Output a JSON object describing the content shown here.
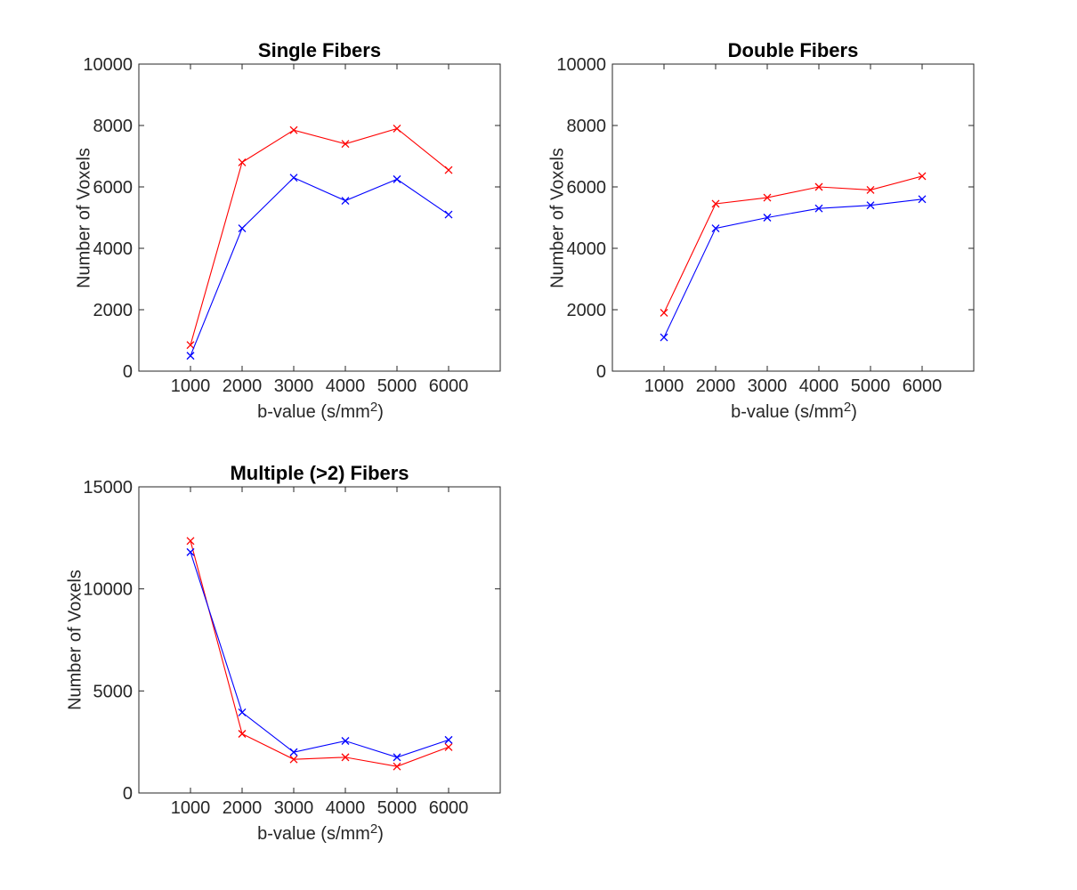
{
  "colors": {
    "series_red": "#ff0000",
    "series_blue": "#0000ff",
    "axis": "#262626",
    "tick_text": "#262626",
    "title_text": "#000000",
    "background": "#ffffff"
  },
  "ylabel": "Number of Voxels",
  "xlabel": {
    "base": "b-value (s/mm",
    "sup": "2",
    "close": ")"
  },
  "chart_data": [
    {
      "type": "line",
      "title": "Single Fibers",
      "xlabel": "b-value (s/mm^2)",
      "ylabel": "Number of Voxels",
      "x": [
        1000,
        2000,
        3000,
        4000,
        5000,
        6000
      ],
      "xlim": [
        0,
        7000
      ],
      "ylim": [
        0,
        10000
      ],
      "xticks": [
        1000,
        2000,
        3000,
        4000,
        5000,
        6000
      ],
      "yticks": [
        0,
        2000,
        4000,
        6000,
        8000,
        10000
      ],
      "grid": false,
      "legend": "none",
      "marker": "x",
      "series": [
        {
          "name": "red",
          "color": "#ff0000",
          "values": [
            850,
            6800,
            7850,
            7400,
            7900,
            6550
          ]
        },
        {
          "name": "blue",
          "color": "#0000ff",
          "values": [
            500,
            4650,
            6300,
            5550,
            6250,
            5100
          ]
        }
      ]
    },
    {
      "type": "line",
      "title": "Double Fibers",
      "xlabel": "b-value (s/mm^2)",
      "ylabel": "Number of Voxels",
      "x": [
        1000,
        2000,
        3000,
        4000,
        5000,
        6000
      ],
      "xlim": [
        0,
        7000
      ],
      "ylim": [
        0,
        10000
      ],
      "xticks": [
        1000,
        2000,
        3000,
        4000,
        5000,
        6000
      ],
      "yticks": [
        0,
        2000,
        4000,
        6000,
        8000,
        10000
      ],
      "grid": false,
      "legend": "none",
      "marker": "x",
      "series": [
        {
          "name": "red",
          "color": "#ff0000",
          "values": [
            1900,
            5450,
            5650,
            6000,
            5900,
            6350
          ]
        },
        {
          "name": "blue",
          "color": "#0000ff",
          "values": [
            1100,
            4650,
            5000,
            5300,
            5400,
            5600
          ]
        }
      ]
    },
    {
      "type": "line",
      "title": "Multiple (>2) Fibers",
      "xlabel": "b-value (s/mm^2)",
      "ylabel": "Number of Voxels",
      "x": [
        1000,
        2000,
        3000,
        4000,
        5000,
        6000
      ],
      "xlim": [
        0,
        7000
      ],
      "ylim": [
        0,
        15000
      ],
      "xticks": [
        1000,
        2000,
        3000,
        4000,
        5000,
        6000
      ],
      "yticks": [
        0,
        5000,
        10000,
        15000
      ],
      "grid": false,
      "legend": "none",
      "marker": "x",
      "series": [
        {
          "name": "red",
          "color": "#ff0000",
          "values": [
            12350,
            2900,
            1650,
            1750,
            1300,
            2250
          ]
        },
        {
          "name": "blue",
          "color": "#0000ff",
          "values": [
            11800,
            3950,
            2000,
            2550,
            1750,
            2600
          ]
        }
      ]
    }
  ]
}
